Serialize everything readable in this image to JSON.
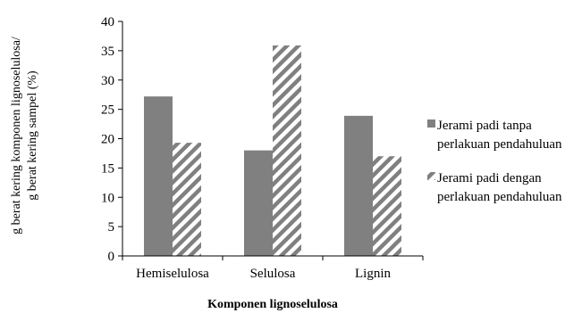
{
  "chart_data": {
    "type": "bar",
    "categories": [
      "Hemiselulosa",
      "Selulosa",
      "Lignin"
    ],
    "series": [
      {
        "name": "Jerami padi tanpa perlakuan pendahuluan",
        "name_lines": [
          "Jerami padi tanpa",
          "perlakuan pendahuluan"
        ],
        "values": [
          27.2,
          18.0,
          23.9
        ],
        "color": "#808080",
        "pattern": "solid"
      },
      {
        "name": "Jerami padi dengan perlakuan pendahuluan",
        "name_lines": [
          "Jerami padi dengan",
          "perlakuan pendahuluan"
        ],
        "values": [
          19.3,
          35.9,
          17.0
        ],
        "color": "#808080",
        "pattern": "diagonal-stripes"
      }
    ],
    "xlabel": "Komponen lignoselulosa",
    "ylabel_lines": [
      "g berat kering komponen lignoselulosa/",
      "g berat kering sampel (%)"
    ],
    "ylim": [
      0,
      40
    ],
    "yticks": [
      0,
      5,
      10,
      15,
      20,
      25,
      30,
      35,
      40
    ],
    "grid": false,
    "legend": "right"
  }
}
